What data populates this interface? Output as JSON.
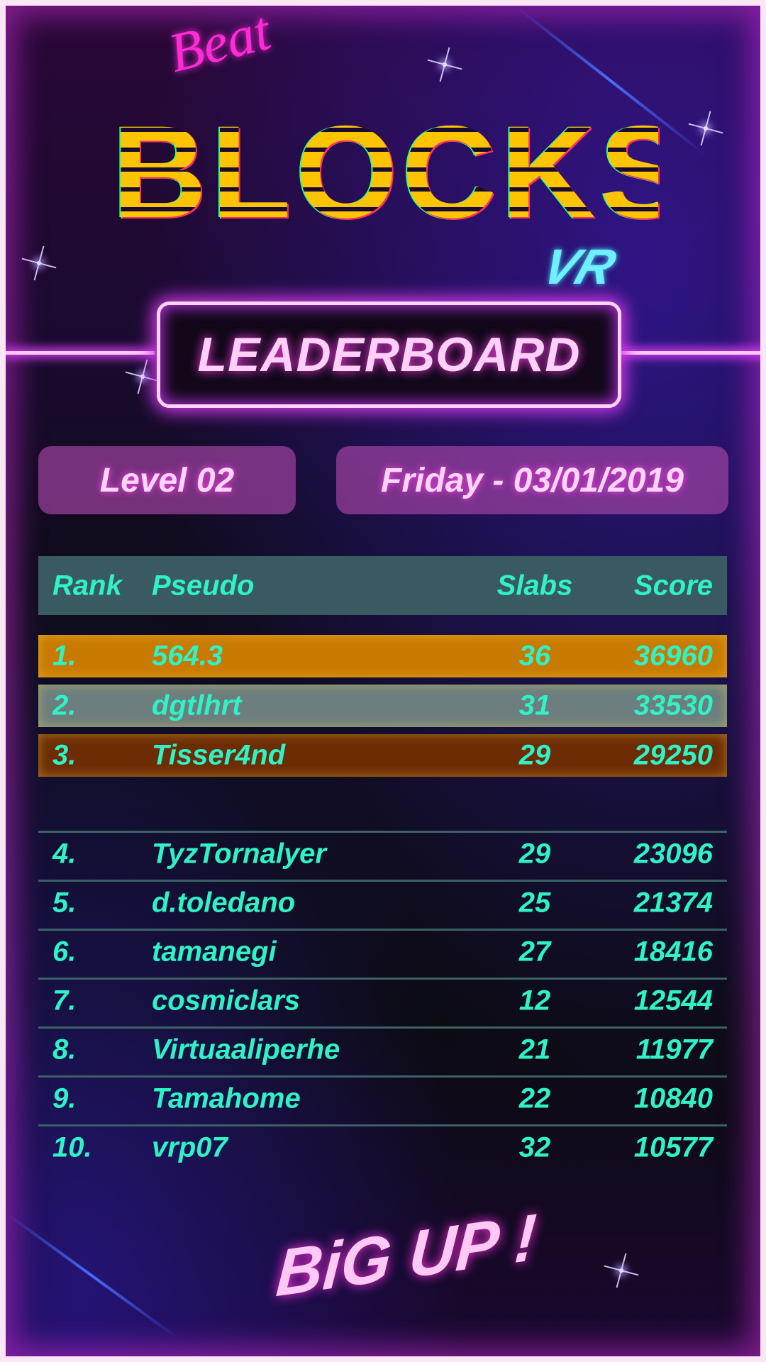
{
  "logo": {
    "beat": "Beat",
    "blocks": "BLOCKS",
    "vr": "VR"
  },
  "title": "LEADERBOARD",
  "level": "Level 02",
  "date": "Friday - 03/01/2019",
  "table": {
    "headers": {
      "rank": "Rank",
      "pseudo": "Pseudo",
      "slabs": "Slabs",
      "score": "Score"
    },
    "podium": [
      {
        "rank": "1.",
        "pseudo": "564.3",
        "slabs": "36",
        "score": "36960",
        "color": "#c87a00"
      },
      {
        "rank": "2.",
        "pseudo": "dgtlhrt",
        "slabs": "31",
        "score": "33530",
        "color": "#6c7e7e"
      },
      {
        "rank": "3.",
        "pseudo": "Tisser4nd",
        "slabs": "29",
        "score": "29250",
        "color": "#6e2c04"
      }
    ],
    "rows": [
      {
        "rank": "4.",
        "pseudo": "TyzTornalyer",
        "slabs": "29",
        "score": "23096"
      },
      {
        "rank": "5.",
        "pseudo": "d.toledano",
        "slabs": "25",
        "score": "21374"
      },
      {
        "rank": "6.",
        "pseudo": "tamanegi",
        "slabs": "27",
        "score": "18416"
      },
      {
        "rank": "7.",
        "pseudo": "cosmiclars",
        "slabs": "12",
        "score": "12544"
      },
      {
        "rank": "8.",
        "pseudo": "Virtuaaliperhe",
        "slabs": "21",
        "score": "11977"
      },
      {
        "rank": "9.",
        "pseudo": "Tamahome",
        "slabs": "22",
        "score": "10840"
      },
      {
        "rank": "10.",
        "pseudo": "vrp07",
        "slabs": "32",
        "score": "10577"
      }
    ]
  },
  "footer": "BiG UP !",
  "colors": {
    "accent_text": "#2ff2c6",
    "neon_pink": "#ff40e8",
    "logo_yellow": "#ffc400"
  }
}
